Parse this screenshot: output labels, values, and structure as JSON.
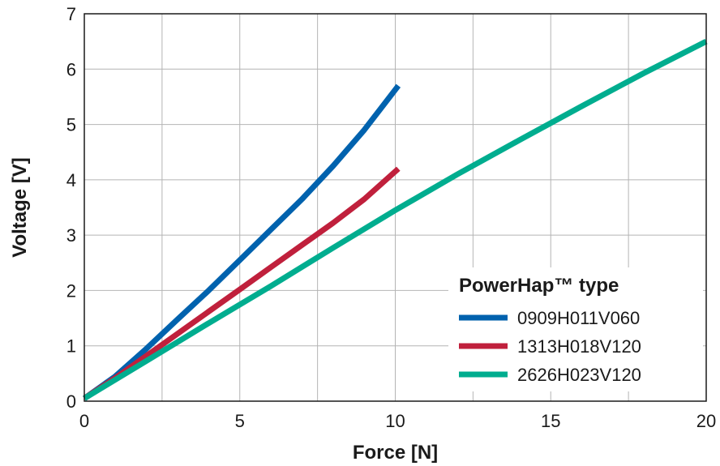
{
  "chart_data": {
    "type": "line",
    "title": "",
    "xlabel": "Force [N]",
    "ylabel": "Voltage [V]",
    "xlim": [
      0,
      20
    ],
    "ylim": [
      0,
      7
    ],
    "xticks": [
      0,
      5,
      10,
      15,
      20
    ],
    "yticks": [
      0,
      1,
      2,
      3,
      4,
      5,
      6,
      7
    ],
    "grid": true,
    "grid_x_step": 2.5,
    "legend_title": "PowerHap™ type",
    "legend_position": "bottom-right",
    "series": [
      {
        "name": "0909H011V060",
        "color": "#0062ae",
        "x": [
          0,
          1,
          2,
          3,
          4,
          5,
          6,
          7,
          8,
          9,
          10.1
        ],
        "y": [
          0.05,
          0.45,
          0.95,
          1.48,
          2.0,
          2.55,
          3.1,
          3.65,
          4.25,
          4.9,
          5.7
        ]
      },
      {
        "name": "1313H018V120",
        "color": "#c0203c",
        "x": [
          0,
          1,
          2,
          3,
          4,
          5,
          6,
          7,
          8,
          9,
          10.1
        ],
        "y": [
          0.05,
          0.42,
          0.82,
          1.22,
          1.62,
          2.02,
          2.42,
          2.82,
          3.22,
          3.65,
          4.2
        ]
      },
      {
        "name": "2626H023V120",
        "color": "#00ad8f",
        "x": [
          0,
          2,
          4,
          6,
          8,
          10,
          12,
          14,
          16,
          18,
          20
        ],
        "y": [
          0.05,
          0.73,
          1.41,
          2.08,
          2.77,
          3.45,
          4.1,
          4.72,
          5.33,
          5.93,
          6.5
        ]
      }
    ]
  }
}
